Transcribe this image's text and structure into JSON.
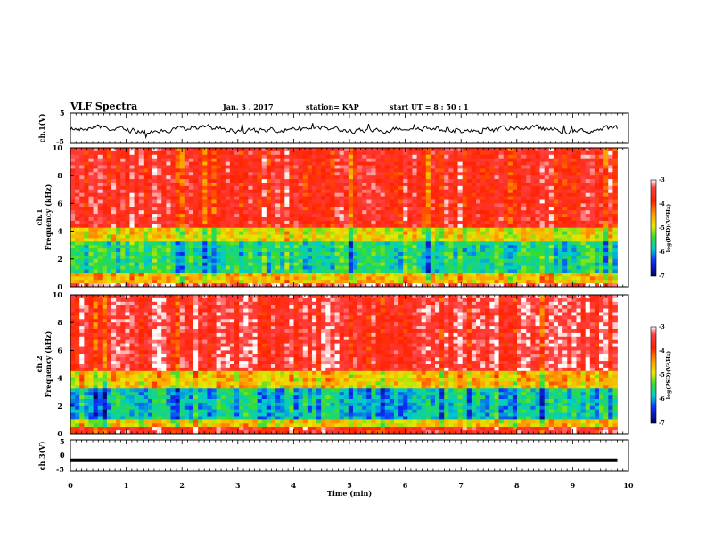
{
  "header": {
    "title": "VLF Spectra",
    "date": "Jan. 3 , 2017",
    "station": "station= KAP",
    "start": "start UT = 8 : 50 : 1"
  },
  "chart_data": [
    {
      "type": "line",
      "panel": "ch1-waveform",
      "ylabel": "ch.1(V)",
      "ylim": [
        -5,
        5
      ],
      "yticks": [
        "5",
        "-5"
      ],
      "xlim": [
        0,
        10
      ],
      "color": "#000000",
      "description_values": "oscillating voltage roughly between -2 and 2 V over 0-9.8 min"
    },
    {
      "type": "heatmap",
      "panel": "ch1-spectrogram",
      "ylabel": [
        "ch.1",
        "Frequency (kHz)"
      ],
      "ylim": [
        0,
        10
      ],
      "yticks": [
        "0",
        "2",
        "4",
        "6",
        "8",
        "10"
      ],
      "xlim": [
        0,
        10
      ],
      "data_extent_min": 9.8,
      "colorbar": {
        "label": "log(PSD)(V²/Hz)",
        "range": [
          -7,
          -3
        ],
        "ticks": [
          "-3",
          "-4",
          "-5",
          "-6",
          "-7"
        ]
      },
      "bands": [
        {
          "from_khz": 0.0,
          "to_khz": 0.2,
          "log_psd": -3.2
        },
        {
          "from_khz": 0.2,
          "to_khz": 1.0,
          "log_psd": -4.6
        },
        {
          "from_khz": 1.0,
          "to_khz": 3.2,
          "log_psd": -5.6
        },
        {
          "from_khz": 3.2,
          "to_khz": 4.2,
          "log_psd": -4.8
        },
        {
          "from_khz": 4.2,
          "to_khz": 10.0,
          "log_psd": -3.6
        }
      ]
    },
    {
      "type": "heatmap",
      "panel": "ch2-spectrogram",
      "ylabel": [
        "ch.2",
        "Frequency (kHz)"
      ],
      "ylim": [
        0,
        10
      ],
      "yticks": [
        "0",
        "2",
        "4",
        "6",
        "8",
        "10"
      ],
      "xlim": [
        0,
        10
      ],
      "data_extent_min": 9.8,
      "colorbar": {
        "label": "log(PSD)(V²/Hz)",
        "range": [
          -7,
          -3
        ],
        "ticks": [
          "-3",
          "-4",
          "-5",
          "-6",
          "-7"
        ]
      },
      "bands": [
        {
          "from_khz": 0.0,
          "to_khz": 0.4,
          "log_psd": -3.5
        },
        {
          "from_khz": 0.4,
          "to_khz": 1.0,
          "log_psd": -4.7
        },
        {
          "from_khz": 1.0,
          "to_khz": 3.3,
          "log_psd": -5.8
        },
        {
          "from_khz": 3.3,
          "to_khz": 4.4,
          "log_psd": -4.6
        },
        {
          "from_khz": 4.4,
          "to_khz": 10.0,
          "log_psd": -3.4
        }
      ]
    },
    {
      "type": "line",
      "panel": "ch3-waveform",
      "ylabel": "ch.3(V)",
      "ylim": [
        -5,
        5
      ],
      "yticks": [
        "5",
        "0",
        "-5"
      ],
      "xlim": [
        0,
        10
      ],
      "xlabel": "Time (min)",
      "xticks": [
        "0",
        "1",
        "2",
        "3",
        "4",
        "5",
        "6",
        "7",
        "8",
        "9",
        "10"
      ],
      "constant_value": -1.5,
      "color": "#000000"
    }
  ]
}
